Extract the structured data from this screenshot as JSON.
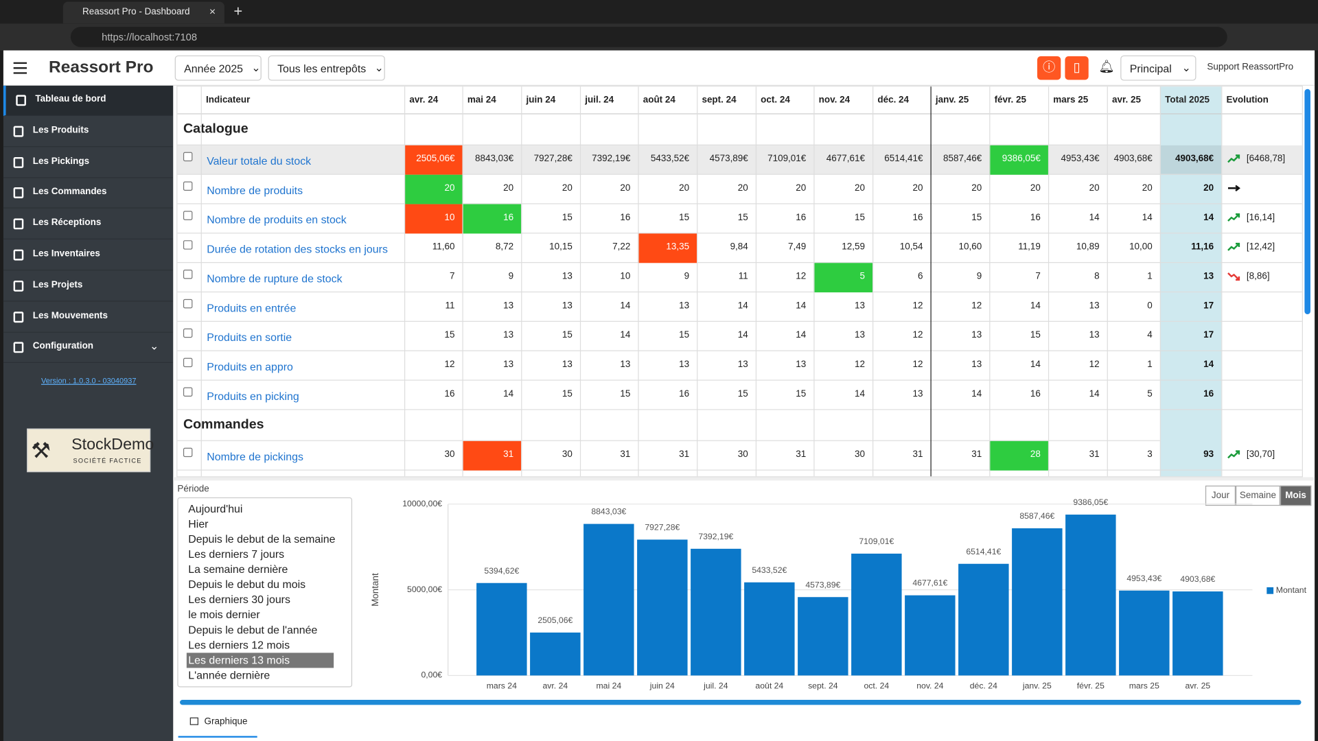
{
  "browser": {
    "tab_title": "Reassort Pro - Dashboard",
    "url": "https://localhost:7108"
  },
  "header": {
    "app_title": "Reassort Pro",
    "year_select": "Année 2025",
    "warehouse_select": "Tous les entrepôts",
    "profile_select": "Principal",
    "support": "Support ReassortPro"
  },
  "sidebar": {
    "items": [
      "Tableau de bord",
      "Les Produits",
      "Les Pickings",
      "Les Commandes",
      "Les Réceptions",
      "Les Inventaires",
      "Les Projets",
      "Les Mouvements",
      "Configuration"
    ],
    "version": "Version : 1.0.3.0 - 03040937",
    "logo": {
      "name": "StockDemo",
      "tagline": "SOCIÉTÉ FACTICE"
    }
  },
  "table": {
    "columns": [
      "Indicateur",
      "avr. 24",
      "mai 24",
      "juin 24",
      "juil. 24",
      "août 24",
      "sept. 24",
      "oct. 24",
      "nov. 24",
      "déc. 24",
      "janv. 25",
      "févr. 25",
      "mars 25",
      "avr. 25",
      "Total 2025",
      "Evolution"
    ],
    "sections": [
      {
        "title": "Catalogue",
        "rows": [
          {
            "label": "Valeur totale du stock",
            "cells": [
              {
                "text": "2505,06€",
                "color": "#ff4a14"
              },
              "8843,03€",
              "7927,28€",
              "7392,19€",
              "5433,52€",
              "4573,89€",
              "7109,01€",
              "4677,61€",
              "6514,41€",
              "8587,46€",
              {
                "text": "9386,05€",
                "color": "#2ecc40"
              },
              "4953,43€",
              "4903,68€"
            ],
            "total": "4903,68€",
            "evolution": {
              "trend": "up",
              "label": "[6468,78]"
            }
          },
          {
            "label": "Nombre de produits",
            "cells": [
              {
                "text": "20",
                "color": "#2ecc40"
              },
              "20",
              "20",
              "20",
              "20",
              "20",
              "20",
              "20",
              "20",
              "20",
              "20",
              "20",
              "20"
            ],
            "total": "20",
            "evolution": {
              "trend": "flat"
            }
          },
          {
            "label": "Nombre de produits en stock",
            "cells": [
              {
                "text": "10",
                "color": "#ff4a14"
              },
              {
                "text": "16",
                "color": "#2ecc40"
              },
              "15",
              "16",
              "15",
              "15",
              "16",
              "15",
              "16",
              "15",
              "16",
              "14",
              "14"
            ],
            "total": "14",
            "evolution": {
              "trend": "up",
              "label": "[16,14]"
            }
          },
          {
            "label": "Durée de rotation des stocks en jours",
            "cells": [
              "11,60",
              "8,72",
              "10,15",
              "7,22",
              {
                "text": "13,35",
                "color": "#ff4a14"
              },
              "9,84",
              "7,49",
              "12,59",
              "10,54",
              "10,60",
              "11,19",
              "10,89",
              "10,00"
            ],
            "total": "11,16",
            "evolution": {
              "trend": "up",
              "label": "[12,42]"
            }
          },
          {
            "label": "Nombre de rupture de stock",
            "cells": [
              "7",
              "9",
              "13",
              "10",
              "9",
              "11",
              "12",
              {
                "text": "5",
                "color": "#2ecc40"
              },
              "6",
              "9",
              "7",
              "8",
              "1"
            ],
            "total": "13",
            "evolution": {
              "trend": "down",
              "label": "[8,86]"
            }
          },
          {
            "label": "Produits en entrée",
            "cells": [
              "11",
              "13",
              "13",
              "14",
              "13",
              "14",
              "14",
              "13",
              "12",
              "12",
              "14",
              "13",
              "0"
            ],
            "total": "17"
          },
          {
            "label": "Produits en sortie",
            "cells": [
              "15",
              "13",
              "15",
              "14",
              "15",
              "14",
              "14",
              "13",
              "12",
              "13",
              "15",
              "13",
              "4"
            ],
            "total": "17"
          },
          {
            "label": "Produits en appro",
            "cells": [
              "12",
              "13",
              "13",
              "13",
              "13",
              "13",
              "13",
              "12",
              "12",
              "13",
              "14",
              "12",
              "1"
            ],
            "total": "14"
          },
          {
            "label": "Produits en picking",
            "cells": [
              "16",
              "14",
              "15",
              "15",
              "16",
              "15",
              "15",
              "14",
              "13",
              "14",
              "16",
              "14",
              "5"
            ],
            "total": "16"
          }
        ]
      },
      {
        "title": "Commandes",
        "rows": [
          {
            "label": "Nombre de pickings",
            "cells": [
              "30",
              {
                "text": "31",
                "color": "#ff4a14"
              },
              "30",
              "31",
              "31",
              "30",
              "31",
              "30",
              "31",
              "31",
              {
                "text": "28",
                "color": "#2ecc40"
              },
              "31",
              "3"
            ],
            "total": "93",
            "evolution": {
              "trend": "up",
              "label": "[30,70]"
            }
          }
        ]
      }
    ]
  },
  "period": {
    "title": "Période",
    "options": [
      "Aujourd'hui",
      "Hier",
      "Depuis le debut de la semaine",
      "Les derniers 7 jours",
      "La semaine dernière",
      "Depuis le debut du mois",
      "Les derniers 30 jours",
      "le mois dernier",
      "Depuis le debut de l'année",
      "Les derniers 12 mois",
      "Les derniers 13 mois",
      "L'année dernière"
    ],
    "selected": "Les derniers 13 mois"
  },
  "granularity": {
    "options": [
      "Jour",
      "Semaine",
      "Mois"
    ],
    "active": "Mois"
  },
  "tabs": [
    "Graphique"
  ],
  "chart_data": {
    "type": "bar",
    "y_label": "Montant",
    "categories": [
      "mars 24",
      "avr. 24",
      "mai 24",
      "juin 24",
      "juil. 24",
      "août 24",
      "sept. 24",
      "oct. 24",
      "nov. 24",
      "déc. 24",
      "janv. 25",
      "févr. 25",
      "mars 25",
      "avr. 25"
    ],
    "series": [
      {
        "name": "Montant",
        "color": "#0b78c9",
        "values": [
          5394.62,
          2505.06,
          8843.03,
          7927.28,
          7392.19,
          5433.52,
          4573.89,
          7109.01,
          4677.61,
          6514.41,
          8587.46,
          9386.05,
          4953.43,
          4903.68
        ],
        "value_labels": [
          "5394,62€",
          "2505,06€",
          "8843,03€",
          "7927,28€",
          "7392,19€",
          "5433,52€",
          "4573,89€",
          "7109,01€",
          "4677,61€",
          "6514,41€",
          "8587,46€",
          "9386,05€",
          "4953,43€",
          "4903,68€"
        ]
      }
    ],
    "ylim": [
      0,
      10000
    ],
    "yticks": [
      {
        "value": 0,
        "label": "0,00€"
      },
      {
        "value": 5000,
        "label": "5000,00€"
      },
      {
        "value": 10000,
        "label": "10000,00€"
      }
    ],
    "grid": true,
    "legend": "right"
  }
}
